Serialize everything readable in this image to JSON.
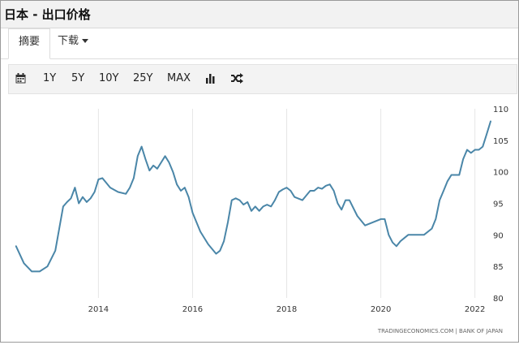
{
  "header": {
    "title": "日本 - 出口价格"
  },
  "tabs": [
    {
      "label": "摘要"
    },
    {
      "label": "下载"
    }
  ],
  "toolbar": {
    "calendar_icon": "calendar-icon",
    "ranges": [
      "1Y",
      "5Y",
      "10Y",
      "25Y",
      "MAX"
    ],
    "chart_type_icon": "bar-chart-icon",
    "compare_icon": "shuffle-icon"
  },
  "colors": {
    "line": "#4a86a8",
    "grid": "#e6e6e6"
  },
  "chart_data": {
    "type": "line",
    "title": "",
    "xlabel": "",
    "ylabel": "",
    "x_ticks": [
      "2014",
      "2016",
      "2018",
      "2020",
      "2022"
    ],
    "y_ticks": [
      80,
      85,
      90,
      95,
      100,
      105,
      110
    ],
    "ylim": [
      80,
      110
    ],
    "xlim": [
      "2012-03",
      "2022-05"
    ],
    "grid": "vertical",
    "source": "TRADINGECONOMICS.COM  |  BANK OF JAPAN",
    "series": [
      {
        "x": [
          "2012-04",
          "2012-06",
          "2012-08",
          "2012-10",
          "2012-12",
          "2013-02",
          "2013-04",
          "2013-05",
          "2013-06",
          "2013-07",
          "2013-08",
          "2013-09",
          "2013-10",
          "2013-11",
          "2013-12",
          "2014-01",
          "2014-02",
          "2014-04",
          "2014-06",
          "2014-08",
          "2014-09",
          "2014-10",
          "2014-11",
          "2014-12",
          "2015-01",
          "2015-02",
          "2015-03",
          "2015-04",
          "2015-05",
          "2015-06",
          "2015-07",
          "2015-08",
          "2015-09",
          "2015-10",
          "2015-11",
          "2015-12",
          "2016-01",
          "2016-03",
          "2016-05",
          "2016-07",
          "2016-08",
          "2016-09",
          "2016-10",
          "2016-11",
          "2016-12",
          "2017-01",
          "2017-02",
          "2017-03",
          "2017-04",
          "2017-05",
          "2017-06",
          "2017-07",
          "2017-08",
          "2017-09",
          "2017-10",
          "2017-11",
          "2017-12",
          "2018-01",
          "2018-02",
          "2018-03",
          "2018-05",
          "2018-07",
          "2018-08",
          "2018-09",
          "2018-10",
          "2018-11",
          "2018-12",
          "2019-01",
          "2019-02",
          "2019-03",
          "2019-04",
          "2019-05",
          "2019-07",
          "2019-09",
          "2019-11",
          "2020-01",
          "2020-02",
          "2020-03",
          "2020-04",
          "2020-05",
          "2020-06",
          "2020-07",
          "2020-08",
          "2020-10",
          "2020-12",
          "2021-02",
          "2021-03",
          "2021-04",
          "2021-05",
          "2021-06",
          "2021-07",
          "2021-08",
          "2021-09",
          "2021-10",
          "2021-11",
          "2021-12",
          "2022-01",
          "2022-02",
          "2022-03",
          "2022-04",
          "2022-05"
        ],
        "values": [
          88.2,
          85.5,
          84.2,
          84.2,
          85.0,
          87.5,
          94.5,
          95.2,
          95.8,
          97.5,
          95.0,
          96.0,
          95.2,
          95.8,
          96.8,
          98.8,
          99.0,
          97.5,
          96.8,
          96.5,
          97.5,
          99.0,
          102.5,
          104.0,
          102.0,
          100.2,
          101.0,
          100.5,
          101.5,
          102.5,
          101.5,
          100.0,
          98.0,
          97.0,
          97.5,
          96.0,
          93.5,
          90.5,
          88.5,
          87.0,
          87.5,
          89.0,
          92.0,
          95.5,
          95.8,
          95.5,
          94.8,
          95.2,
          93.8,
          94.5,
          93.8,
          94.5,
          94.8,
          94.5,
          95.5,
          96.8,
          97.2,
          97.5,
          97.0,
          96.0,
          95.5,
          97.0,
          97.0,
          97.5,
          97.3,
          97.8,
          98.0,
          97.0,
          95.0,
          94.0,
          95.5,
          95.5,
          93.0,
          91.5,
          92.0,
          92.5,
          92.5,
          90.0,
          88.8,
          88.2,
          89.0,
          89.5,
          90.0,
          90.0,
          90.0,
          91.0,
          92.5,
          95.5,
          97.0,
          98.5,
          99.5,
          99.5,
          99.5,
          102.0,
          103.5,
          103.0,
          103.5,
          103.5,
          104.0,
          106.0,
          108.0
        ]
      }
    ]
  }
}
